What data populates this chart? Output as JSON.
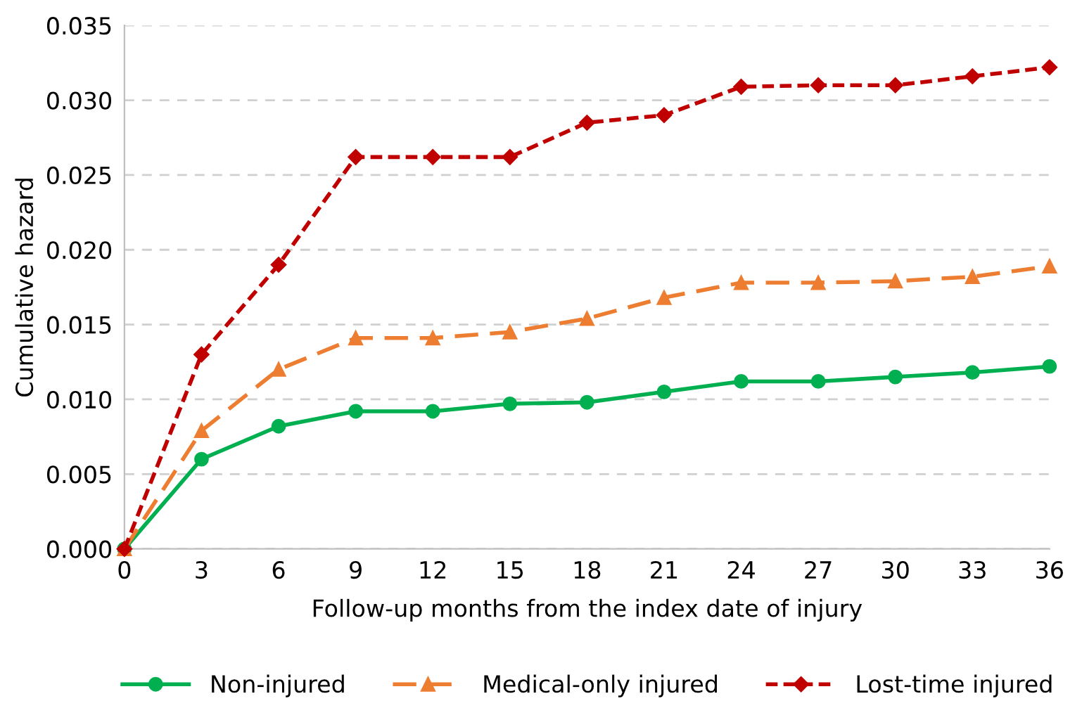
{
  "chart_data": {
    "type": "line",
    "xlabel": "Follow-up months from the index date of injury",
    "ylabel": "Cumulative hazard",
    "x": [
      0,
      3,
      6,
      9,
      12,
      15,
      18,
      21,
      24,
      27,
      30,
      33,
      36
    ],
    "series": [
      {
        "name": "Non-injured",
        "color": "#00b050",
        "marker": "circle",
        "line_style": "solid",
        "values": [
          0,
          0.006,
          0.0082,
          0.0092,
          0.0092,
          0.0097,
          0.0098,
          0.0105,
          0.0112,
          0.0112,
          0.0115,
          0.0118,
          0.0122
        ]
      },
      {
        "name": "Medical-only injured",
        "color": "#ed7d31",
        "marker": "triangle",
        "line_style": "dashed",
        "values": [
          0,
          0.0079,
          0.012,
          0.0141,
          0.0141,
          0.0145,
          0.0154,
          0.0168,
          0.0178,
          0.0178,
          0.0179,
          0.0182,
          0.0189
        ]
      },
      {
        "name": "Lost-time injured",
        "color": "#c00000",
        "marker": "diamond",
        "line_style": "dotted",
        "values": [
          0,
          0.013,
          0.019,
          0.0262,
          0.0262,
          0.0262,
          0.0285,
          0.029,
          0.0309,
          0.031,
          0.031,
          0.0316,
          0.0322
        ]
      }
    ],
    "xlim": [
      0,
      36
    ],
    "xticks": [
      0,
      3,
      6,
      9,
      12,
      15,
      18,
      21,
      24,
      27,
      30,
      33,
      36
    ],
    "ylim": [
      0,
      0.035
    ],
    "yticks": [
      {
        "value": 0,
        "label": "0.000"
      },
      {
        "value": 0.005,
        "label": "0.005"
      },
      {
        "value": 0.01,
        "label": "0.010"
      },
      {
        "value": 0.015,
        "label": "0.015"
      },
      {
        "value": 0.02,
        "label": "0.020"
      },
      {
        "value": 0.025,
        "label": "0.025"
      },
      {
        "value": 0.03,
        "label": "0.030"
      },
      {
        "value": 0.035,
        "label": "0.035"
      }
    ],
    "grid": "y",
    "legend": "bottom"
  }
}
